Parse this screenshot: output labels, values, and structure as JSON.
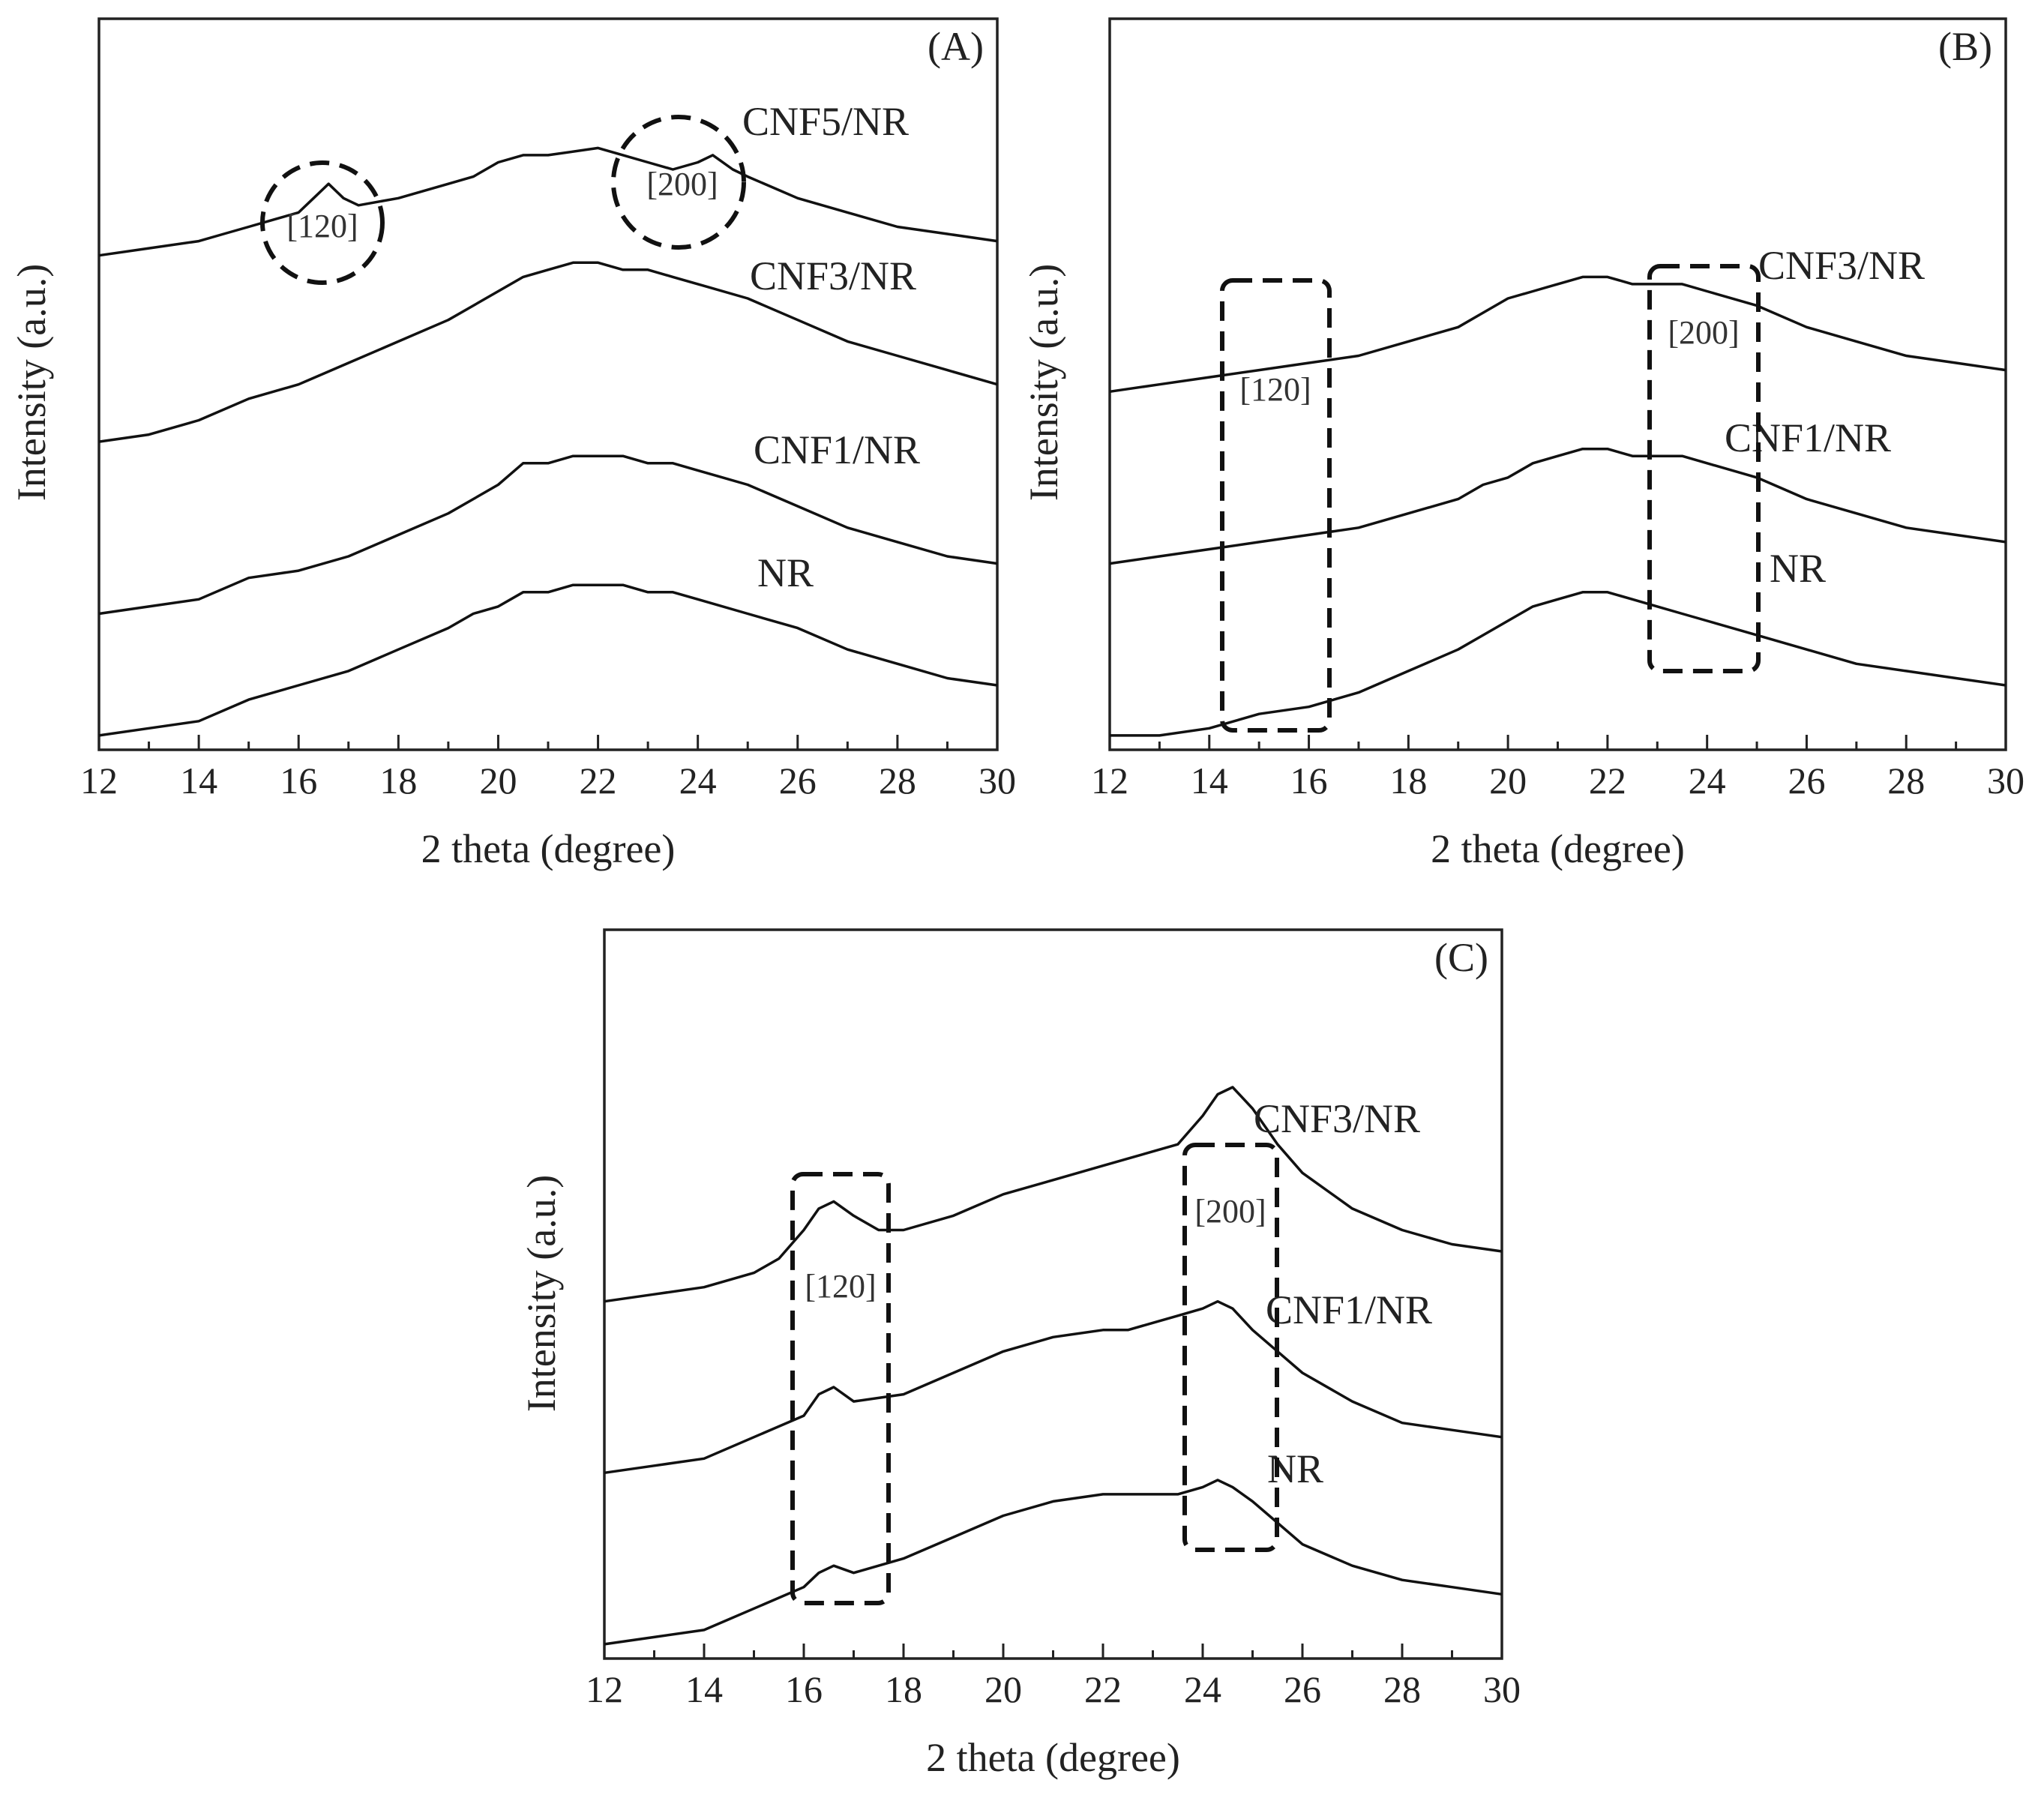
{
  "chart_data": [
    {
      "type": "line",
      "panel_label": "(A)",
      "xlabel": "2 theta (degree)",
      "ylabel": "Intensity (a.u.)",
      "xlim": [
        12,
        30
      ],
      "xticks": [
        "12",
        "14",
        "16",
        "18",
        "20",
        "22",
        "24",
        "26",
        "28",
        "30"
      ],
      "ylim": [
        0,
        100
      ],
      "series": [
        {
          "name": "CNF5/NR",
          "x": [
            12,
            13,
            14,
            14.5,
            15,
            15.5,
            16,
            16.3,
            16.6,
            16.9,
            17.2,
            18,
            19,
            19.5,
            20,
            20.5,
            21,
            22,
            22.5,
            23,
            23.5,
            24,
            24.3,
            24.7,
            25,
            26,
            27,
            28,
            29,
            30
          ],
          "y": [
            69,
            70,
            71,
            72,
            73,
            74,
            75,
            77,
            79,
            77,
            76,
            77,
            79,
            80,
            82,
            83,
            83,
            84,
            83,
            82,
            81,
            82,
            83,
            81,
            80,
            77,
            75,
            73,
            72,
            71
          ]
        },
        {
          "name": "CNF3/NR",
          "x": [
            12,
            13,
            14,
            15,
            16,
            17,
            18,
            19,
            19.5,
            20,
            20.5,
            21,
            21.5,
            22,
            22.5,
            23,
            23.5,
            24,
            25,
            26,
            27,
            28,
            29,
            30
          ],
          "y": [
            43,
            44,
            46,
            49,
            51,
            54,
            57,
            60,
            62,
            64,
            66,
            67,
            68,
            68,
            67,
            67,
            66,
            65,
            63,
            60,
            57,
            55,
            53,
            51
          ]
        },
        {
          "name": "CNF1/NR",
          "x": [
            12,
            13,
            14,
            15,
            16,
            17,
            18,
            19,
            19.5,
            20,
            20.5,
            21,
            21.5,
            22,
            22.5,
            23,
            23.5,
            24,
            25,
            26,
            27,
            28,
            29,
            30
          ],
          "y": [
            19,
            20,
            21,
            24,
            25,
            27,
            30,
            33,
            35,
            37,
            40,
            40,
            41,
            41,
            41,
            40,
            40,
            39,
            37,
            34,
            31,
            29,
            27,
            26
          ]
        },
        {
          "name": "NR",
          "x": [
            12,
            13,
            14,
            15,
            16,
            17,
            18,
            19,
            19.5,
            20,
            20.5,
            21,
            21.5,
            22,
            22.5,
            23,
            23.5,
            24,
            25,
            26,
            27,
            28,
            29,
            30
          ],
          "y": [
            2,
            3,
            4,
            7,
            9,
            11,
            14,
            17,
            19,
            20,
            22,
            22,
            23,
            23,
            23,
            22,
            22,
            21,
            19,
            17,
            14,
            12,
            10,
            9
          ]
        }
      ],
      "annotations": [
        {
          "label": "[120]",
          "shape": "circle",
          "x": 16.6
        },
        {
          "label": "[200]",
          "shape": "circle",
          "x": 23.6
        }
      ]
    },
    {
      "type": "line",
      "panel_label": "(B)",
      "xlabel": "2 theta (degree)",
      "ylabel": "Intensity (a.u.)",
      "xlim": [
        12,
        30
      ],
      "xticks": [
        "12",
        "14",
        "16",
        "18",
        "20",
        "22",
        "24",
        "26",
        "28",
        "30"
      ],
      "ylim": [
        0,
        100
      ],
      "series": [
        {
          "name": "CNF3/NR",
          "x": [
            12,
            13,
            14,
            15,
            16,
            17,
            18,
            19,
            19.5,
            20,
            20.5,
            21,
            21.5,
            22,
            22.5,
            23,
            23.5,
            24,
            25,
            26,
            27,
            28,
            29,
            30
          ],
          "y": [
            50,
            51,
            52,
            53,
            54,
            55,
            57,
            59,
            61,
            63,
            64,
            65,
            66,
            66,
            65,
            65,
            65,
            64,
            62,
            59,
            57,
            55,
            54,
            53
          ]
        },
        {
          "name": "CNF1/NR",
          "x": [
            12,
            13,
            14,
            15,
            16,
            17,
            18,
            19,
            19.5,
            20,
            20.5,
            21,
            21.5,
            22,
            22.5,
            23,
            23.5,
            24,
            25,
            26,
            27,
            28,
            29,
            30
          ],
          "y": [
            26,
            27,
            28,
            29,
            30,
            31,
            33,
            35,
            37,
            38,
            40,
            41,
            42,
            42,
            41,
            41,
            41,
            40,
            38,
            35,
            33,
            31,
            30,
            29
          ]
        },
        {
          "name": "NR",
          "x": [
            12,
            13,
            14,
            15,
            16,
            17,
            18,
            19,
            19.5,
            20,
            20.5,
            21,
            21.5,
            22,
            22.5,
            23,
            23.5,
            24,
            25,
            26,
            27,
            28,
            29,
            30
          ],
          "y": [
            2,
            2,
            3,
            5,
            6,
            8,
            11,
            14,
            16,
            18,
            20,
            21,
            22,
            22,
            21,
            20,
            19,
            18,
            16,
            14,
            12,
            11,
            10,
            9
          ]
        }
      ],
      "annotations": [
        {
          "label": "[120]",
          "shape": "box",
          "x": 15.3
        },
        {
          "label": "[200]",
          "shape": "box",
          "x": 23.9
        }
      ]
    },
    {
      "type": "line",
      "panel_label": "(C)",
      "xlabel": "2 theta (degree)",
      "ylabel": "Intensity (a.u.)",
      "xlim": [
        12,
        30
      ],
      "xticks": [
        "12",
        "14",
        "16",
        "18",
        "20",
        "22",
        "24",
        "26",
        "28",
        "30"
      ],
      "ylim": [
        0,
        100
      ],
      "series": [
        {
          "name": "CNF3/NR",
          "x": [
            12,
            13,
            14,
            15,
            15.5,
            16,
            16.3,
            16.6,
            17,
            17.5,
            18,
            19,
            20,
            21,
            22,
            22.5,
            23,
            23.5,
            24,
            24.3,
            24.6,
            25,
            25.5,
            26,
            27,
            28,
            29,
            30
          ],
          "y": [
            50,
            51,
            52,
            54,
            56,
            60,
            63,
            64,
            62,
            60,
            60,
            62,
            65,
            67,
            69,
            70,
            71,
            72,
            76,
            79,
            80,
            77,
            72,
            68,
            63,
            60,
            58,
            57
          ]
        },
        {
          "name": "CNF1/NR",
          "x": [
            12,
            13,
            14,
            15,
            16,
            16.3,
            16.6,
            17,
            18,
            19,
            20,
            21,
            22,
            22.5,
            23,
            23.5,
            24,
            24.3,
            24.6,
            25,
            25.5,
            26,
            27,
            28,
            29,
            30
          ],
          "y": [
            26,
            27,
            28,
            31,
            34,
            37,
            38,
            36,
            37,
            40,
            43,
            45,
            46,
            46,
            47,
            48,
            49,
            50,
            49,
            46,
            43,
            40,
            36,
            33,
            32,
            31
          ]
        },
        {
          "name": "NR",
          "x": [
            12,
            13,
            14,
            15,
            16,
            16.3,
            16.6,
            17,
            18,
            19,
            20,
            21,
            22,
            22.5,
            23,
            23.5,
            24,
            24.3,
            24.6,
            25,
            25.5,
            26,
            27,
            28,
            29,
            30
          ],
          "y": [
            2,
            3,
            4,
            7,
            10,
            12,
            13,
            12,
            14,
            17,
            20,
            22,
            23,
            23,
            23,
            23,
            24,
            25,
            24,
            22,
            19,
            16,
            13,
            11,
            10,
            9
          ]
        }
      ],
      "annotations": [
        {
          "label": "[120]",
          "shape": "box",
          "x": 16.8
        },
        {
          "label": "[200]",
          "shape": "box",
          "x": 24.5
        }
      ]
    }
  ]
}
